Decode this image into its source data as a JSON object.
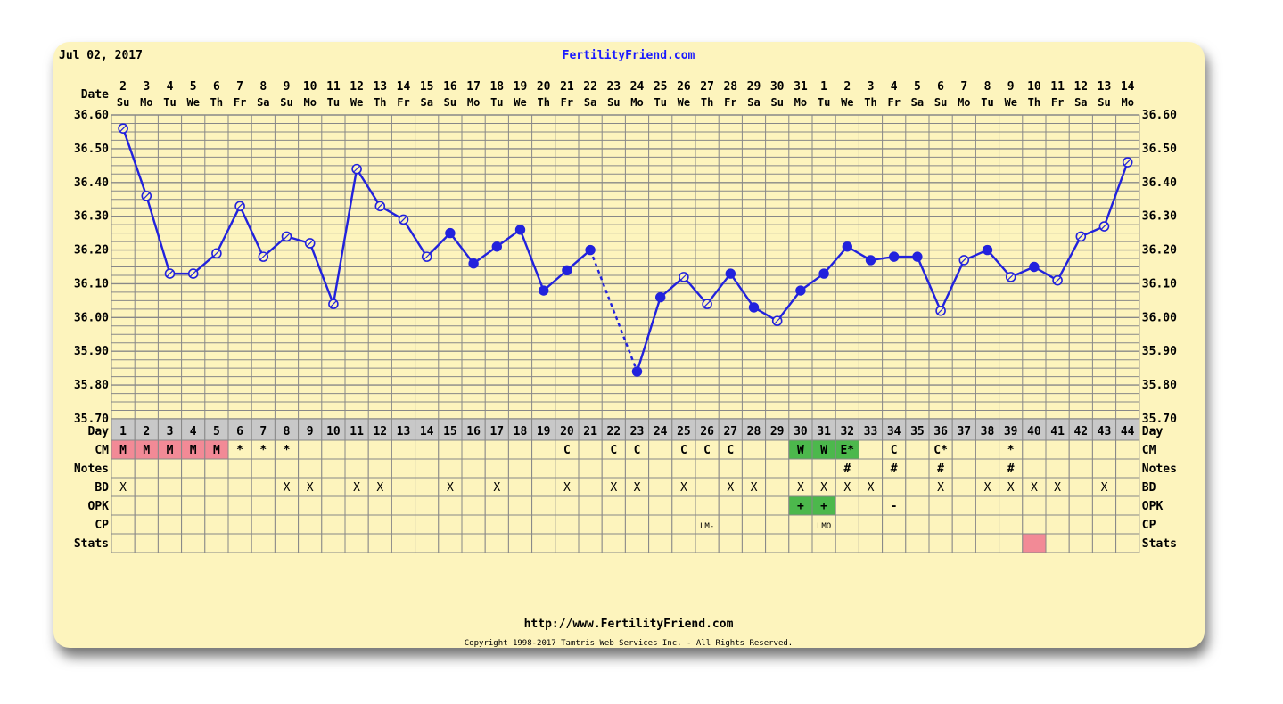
{
  "header": {
    "date": "Jul 02, 2017",
    "site_title": "FertilityFriend.com"
  },
  "footer": {
    "url": "http://www.FertilityFriend.com",
    "copyright": "Copyright 1998-2017 Tamtris Web Services Inc. - All Rights Reserved."
  },
  "colors": {
    "background": "#fdf4bd",
    "grid": "#888888",
    "line": "#2222dd",
    "menstruation": "#f28a96",
    "positive": "#4cb84c",
    "day_row": "#c8c8c8"
  },
  "chart_data": {
    "type": "line",
    "row_labels": {
      "date": "Date",
      "day": "Day",
      "cm": "CM",
      "notes": "Notes",
      "bd": "BD",
      "opk": "OPK",
      "cp": "CP",
      "stats": "Stats"
    },
    "dates": [
      "2",
      "3",
      "4",
      "5",
      "6",
      "7",
      "8",
      "9",
      "10",
      "11",
      "12",
      "13",
      "14",
      "15",
      "16",
      "17",
      "18",
      "19",
      "20",
      "21",
      "22",
      "23",
      "24",
      "25",
      "26",
      "27",
      "28",
      "29",
      "30",
      "31",
      "1",
      "2",
      "3",
      "4",
      "5",
      "6",
      "7",
      "8",
      "9",
      "10",
      "11",
      "12",
      "13",
      "14"
    ],
    "weekdays": [
      "Su",
      "Mo",
      "Tu",
      "We",
      "Th",
      "Fr",
      "Sa",
      "Su",
      "Mo",
      "Tu",
      "We",
      "Th",
      "Fr",
      "Sa",
      "Su",
      "Mo",
      "Tu",
      "We",
      "Th",
      "Fr",
      "Sa",
      "Su",
      "Mo",
      "Tu",
      "We",
      "Th",
      "Fr",
      "Sa",
      "Su",
      "Mo",
      "Tu",
      "We",
      "Th",
      "Fr",
      "Sa",
      "Su",
      "Mo",
      "Tu",
      "We",
      "Th",
      "Fr",
      "Sa",
      "Su",
      "Mo"
    ],
    "days": [
      "1",
      "2",
      "3",
      "4",
      "5",
      "6",
      "7",
      "8",
      "9",
      "10",
      "11",
      "12",
      "13",
      "14",
      "15",
      "16",
      "17",
      "18",
      "19",
      "20",
      "21",
      "22",
      "23",
      "24",
      "25",
      "26",
      "27",
      "28",
      "29",
      "30",
      "31",
      "32",
      "33",
      "34",
      "35",
      "36",
      "37",
      "38",
      "39",
      "40",
      "41",
      "42",
      "43",
      "44"
    ],
    "y_ticks": [
      "36.60",
      "36.50",
      "36.40",
      "36.30",
      "36.20",
      "36.10",
      "36.00",
      "35.90",
      "35.80",
      "35.70"
    ],
    "ylim": [
      35.7,
      36.6
    ],
    "temps": [
      36.56,
      36.36,
      36.13,
      36.13,
      36.19,
      36.33,
      36.18,
      36.24,
      36.22,
      36.04,
      36.44,
      36.33,
      36.29,
      36.18,
      36.25,
      36.16,
      36.21,
      36.26,
      36.08,
      36.14,
      36.2,
      null,
      35.84,
      36.06,
      36.12,
      36.04,
      36.13,
      36.03,
      35.99,
      36.08,
      36.13,
      36.21,
      36.17,
      36.18,
      36.18,
      36.02,
      36.17,
      36.2,
      36.12,
      36.15,
      36.11,
      36.24,
      36.27,
      36.46
    ],
    "filled": [
      false,
      false,
      false,
      false,
      false,
      false,
      false,
      false,
      false,
      false,
      false,
      false,
      false,
      false,
      true,
      true,
      true,
      true,
      true,
      true,
      true,
      false,
      true,
      true,
      false,
      false,
      true,
      true,
      false,
      true,
      true,
      true,
      true,
      true,
      true,
      false,
      false,
      true,
      false,
      true,
      false,
      false,
      false,
      false
    ],
    "dashed_gap": {
      "from_day": "21",
      "to_day": "23"
    },
    "cm": [
      "M",
      "M",
      "M",
      "M",
      "M",
      "*",
      "*",
      "*",
      "",
      "",
      "",
      "",
      "",
      "",
      "",
      "",
      "",
      "",
      "",
      "C",
      "",
      "C",
      "C",
      "",
      "C",
      "C",
      "C",
      "",
      "",
      "W",
      "W",
      "E*",
      "",
      "C",
      "",
      "C*",
      "",
      "",
      "*",
      "",
      "",
      "",
      "",
      ""
    ],
    "cm_highlight": [
      "pink",
      "pink",
      "pink",
      "pink",
      "pink",
      "",
      "",
      "",
      "",
      "",
      "",
      "",
      "",
      "",
      "",
      "",
      "",
      "",
      "",
      "",
      "",
      "",
      "",
      "",
      "",
      "",
      "",
      "",
      "",
      "green",
      "green",
      "green",
      "",
      "",
      "",
      "",
      "",
      "",
      "",
      "",
      "",
      "",
      "",
      ""
    ],
    "notes": [
      "",
      "",
      "",
      "",
      "",
      "",
      "",
      "",
      "",
      "",
      "",
      "",
      "",
      "",
      "",
      "",
      "",
      "",
      "",
      "",
      "",
      "",
      "",
      "",
      "",
      "",
      "",
      "",
      "",
      "",
      "",
      "#",
      "",
      "#",
      "",
      "#",
      "",
      "",
      "#",
      "",
      "",
      "",
      "",
      ""
    ],
    "bd": [
      "X",
      "",
      "",
      "",
      "",
      "",
      "",
      "X",
      "X",
      "",
      "X",
      "X",
      "",
      "",
      "X",
      "",
      "X",
      "",
      "",
      "X",
      "",
      "X",
      "X",
      "",
      "X",
      "",
      "X",
      "X",
      "",
      "X",
      "X",
      "X",
      "X",
      "",
      "",
      "X",
      "",
      "X",
      "X",
      "X",
      "X",
      "",
      "X",
      ""
    ],
    "opk": [
      "",
      "",
      "",
      "",
      "",
      "",
      "",
      "",
      "",
      "",
      "",
      "",
      "",
      "",
      "",
      "",
      "",
      "",
      "",
      "",
      "",
      "",
      "",
      "",
      "",
      "",
      "",
      "",
      "",
      "+",
      "+",
      "",
      "",
      "-",
      "",
      "",
      "",
      "",
      "",
      "",
      "",
      "",
      "",
      ""
    ],
    "opk_highlight": [
      "",
      "",
      "",
      "",
      "",
      "",
      "",
      "",
      "",
      "",
      "",
      "",
      "",
      "",
      "",
      "",
      "",
      "",
      "",
      "",
      "",
      "",
      "",
      "",
      "",
      "",
      "",
      "",
      "",
      "green",
      "green",
      "",
      "",
      "",
      "",
      "",
      "",
      "",
      "",
      "",
      "",
      "",
      "",
      ""
    ],
    "cp": [
      "",
      "",
      "",
      "",
      "",
      "",
      "",
      "",
      "",
      "",
      "",
      "",
      "",
      "",
      "",
      "",
      "",
      "",
      "",
      "",
      "",
      "",
      "",
      "",
      "",
      "LM-",
      "",
      "",
      "",
      "",
      "LMO",
      "",
      "",
      "",
      "",
      "",
      "",
      "",
      "",
      "",
      "",
      "",
      "",
      ""
    ],
    "stats_highlight": [
      "",
      "",
      "",
      "",
      "",
      "",
      "",
      "",
      "",
      "",
      "",
      "",
      "",
      "",
      "",
      "",
      "",
      "",
      "",
      "",
      "",
      "",
      "",
      "",
      "",
      "",
      "",
      "",
      "",
      "",
      "",
      "",
      "",
      "",
      "",
      "",
      "",
      "",
      "",
      "pink",
      "",
      "",
      "",
      ""
    ]
  }
}
